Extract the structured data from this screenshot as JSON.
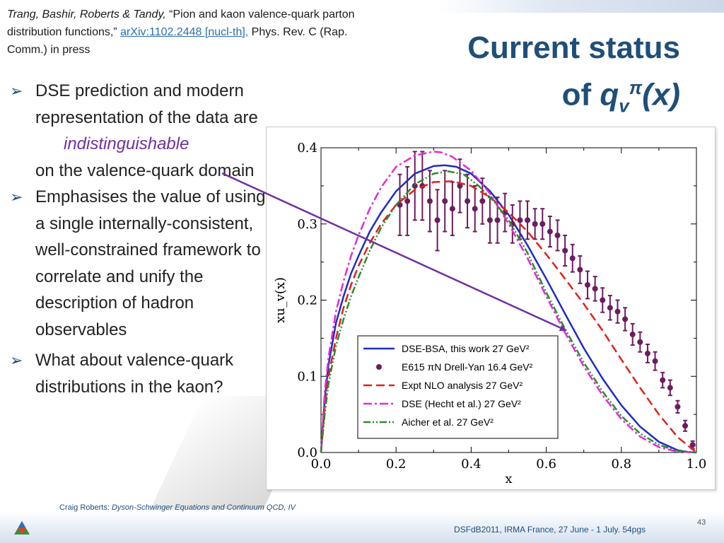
{
  "reference": {
    "authors": "Trang, Bashir, Roberts & Tandy,",
    "title_open": " “Pion and kaon valence-quark parton distribution functions,” ",
    "arxiv": "arXiv:1102.2448 [nucl-th],",
    "journal": " Phys. Rev. C (Rap. Comm.) in press"
  },
  "title": {
    "line1": "Current status",
    "line2_of": "of ",
    "q": "q",
    "sub": "v",
    "sup": "π",
    "x": "(x)"
  },
  "bullets": [
    {
      "line1": "DSE prediction and modern representation of the data are",
      "emph": "indistinguishable",
      "line2": "on the valence-quark domain"
    },
    {
      "text": "Emphasises the value of using a single internally-consistent, well-constrained framework to correlate and unify the description of hadron observables"
    },
    {
      "text": "What about valence-quark distributions in the kaon?"
    }
  ],
  "footer": {
    "author": "Craig Roberts:",
    "talk": "Dyson-Schwinger Equations and Continuum QCD, IV",
    "conference": "DSFdB2011, IRMA France, 27 June - 1 July. 54pgs",
    "page": "43"
  },
  "chart_data": {
    "type": "line",
    "xlabel": "x",
    "ylabel": "xu_v(x)",
    "xlim": [
      0.0,
      1.0
    ],
    "ylim": [
      0.0,
      0.4
    ],
    "xticks": [
      "0.0",
      "0.2",
      "0.4",
      "0.6",
      "0.8",
      "1.0"
    ],
    "yticks": [
      "0.0",
      "0.1",
      "0.2",
      "0.3",
      "0.4"
    ],
    "legend_position": "bottom-center",
    "series": [
      {
        "name": "DSE-BSA, this work  27 GeV²",
        "style": "solid",
        "color": "#1f2dbf",
        "x": [
          0,
          0.01,
          0.02,
          0.04,
          0.06,
          0.08,
          0.1,
          0.13,
          0.16,
          0.2,
          0.25,
          0.3,
          0.33,
          0.36,
          0.4,
          0.45,
          0.5,
          0.55,
          0.6,
          0.65,
          0.7,
          0.75,
          0.8,
          0.85,
          0.9,
          0.95,
          0.98,
          1.0
        ],
        "y": [
          0,
          0.07,
          0.115,
          0.17,
          0.205,
          0.235,
          0.258,
          0.29,
          0.315,
          0.343,
          0.366,
          0.376,
          0.377,
          0.375,
          0.366,
          0.343,
          0.312,
          0.272,
          0.228,
          0.182,
          0.137,
          0.097,
          0.062,
          0.034,
          0.014,
          0.003,
          0.0005,
          0
        ]
      },
      {
        "name": "E615  πN Drell-Yan 16.4 GeV²",
        "style": "points",
        "color": "#6b1d5e",
        "x": [
          0.21,
          0.23,
          0.25,
          0.27,
          0.29,
          0.31,
          0.33,
          0.35,
          0.37,
          0.39,
          0.41,
          0.43,
          0.45,
          0.47,
          0.49,
          0.51,
          0.53,
          0.55,
          0.57,
          0.59,
          0.61,
          0.63,
          0.65,
          0.67,
          0.69,
          0.71,
          0.73,
          0.75,
          0.77,
          0.79,
          0.81,
          0.83,
          0.85,
          0.87,
          0.89,
          0.91,
          0.93,
          0.95,
          0.97,
          0.99
        ],
        "y": [
          0.325,
          0.33,
          0.35,
          0.35,
          0.33,
          0.305,
          0.33,
          0.32,
          0.35,
          0.33,
          0.32,
          0.33,
          0.305,
          0.305,
          0.315,
          0.3,
          0.305,
          0.305,
          0.3,
          0.3,
          0.29,
          0.285,
          0.265,
          0.255,
          0.24,
          0.22,
          0.215,
          0.2,
          0.19,
          0.185,
          0.175,
          0.155,
          0.145,
          0.13,
          0.12,
          0.095,
          0.085,
          0.06,
          0.035,
          0.01
        ],
        "err": [
          0.04,
          0.045,
          0.045,
          0.045,
          0.04,
          0.04,
          0.04,
          0.035,
          0.035,
          0.035,
          0.03,
          0.03,
          0.03,
          0.03,
          0.025,
          0.025,
          0.025,
          0.025,
          0.02,
          0.02,
          0.02,
          0.02,
          0.02,
          0.018,
          0.018,
          0.018,
          0.016,
          0.016,
          0.016,
          0.015,
          0.015,
          0.014,
          0.013,
          0.012,
          0.012,
          0.01,
          0.01,
          0.008,
          0.007,
          0.005
        ]
      },
      {
        "name": "Expt NLO analysis 27 GeV²",
        "style": "dashed",
        "color": "#e0201b",
        "x": [
          0,
          0.01,
          0.02,
          0.04,
          0.06,
          0.08,
          0.1,
          0.13,
          0.16,
          0.2,
          0.25,
          0.3,
          0.35,
          0.4,
          0.45,
          0.5,
          0.55,
          0.6,
          0.65,
          0.7,
          0.75,
          0.8,
          0.85,
          0.9,
          0.95,
          1.0
        ],
        "y": [
          0,
          0.06,
          0.1,
          0.15,
          0.19,
          0.22,
          0.245,
          0.275,
          0.3,
          0.325,
          0.345,
          0.355,
          0.356,
          0.35,
          0.335,
          0.315,
          0.29,
          0.26,
          0.228,
          0.195,
          0.16,
          0.122,
          0.085,
          0.05,
          0.02,
          0
        ]
      },
      {
        "name": "DSE (Hecht et al.) 27 GeV²",
        "style": "dashdot",
        "color": "#e22bd6",
        "x": [
          0,
          0.01,
          0.02,
          0.04,
          0.06,
          0.08,
          0.1,
          0.13,
          0.16,
          0.2,
          0.25,
          0.3,
          0.32,
          0.35,
          0.4,
          0.45,
          0.5,
          0.55,
          0.6,
          0.65,
          0.7,
          0.75,
          0.8,
          0.85,
          0.9,
          0.95,
          1.0
        ],
        "y": [
          0,
          0.08,
          0.125,
          0.185,
          0.225,
          0.258,
          0.285,
          0.32,
          0.348,
          0.375,
          0.39,
          0.395,
          0.394,
          0.388,
          0.37,
          0.34,
          0.3,
          0.255,
          0.205,
          0.157,
          0.113,
          0.075,
          0.044,
          0.021,
          0.007,
          0.001,
          0
        ]
      },
      {
        "name": "Aicher et al. 27 GeV²",
        "style": "dashdotdot",
        "color": "#2f8a2a",
        "x": [
          0,
          0.01,
          0.02,
          0.04,
          0.06,
          0.08,
          0.1,
          0.13,
          0.16,
          0.2,
          0.25,
          0.3,
          0.34,
          0.38,
          0.42,
          0.46,
          0.5,
          0.55,
          0.6,
          0.65,
          0.7,
          0.75,
          0.8,
          0.85,
          0.9,
          0.95,
          1.0
        ],
        "y": [
          0,
          0.05,
          0.09,
          0.14,
          0.175,
          0.205,
          0.23,
          0.265,
          0.295,
          0.325,
          0.352,
          0.366,
          0.369,
          0.365,
          0.35,
          0.33,
          0.305,
          0.262,
          0.21,
          0.162,
          0.118,
          0.08,
          0.048,
          0.025,
          0.01,
          0.002,
          0
        ]
      }
    ]
  }
}
